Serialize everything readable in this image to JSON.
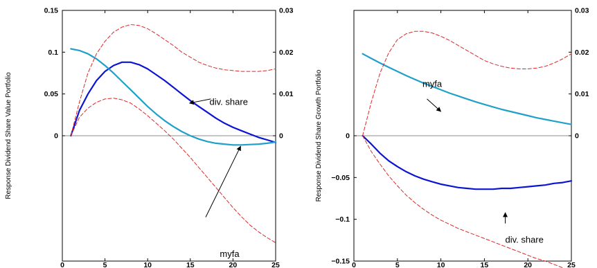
{
  "chart_data": [
    {
      "type": "line",
      "title": "",
      "xlabel": "",
      "ylabel": "Response Dividend Share Value Portfolio",
      "xlim": [
        0,
        25
      ],
      "ylim_left": [
        -0.15,
        0.15
      ],
      "ylim_right": [
        -0.03,
        0.03
      ],
      "xticks": [
        "0",
        "5",
        "10",
        "15",
        "20",
        "25"
      ],
      "yticks_left": [
        {
          "v": 0.15,
          "label": "0.15"
        },
        {
          "v": 0.1,
          "label": "0.1"
        },
        {
          "v": 0.05,
          "label": "0.05"
        },
        {
          "v": 0,
          "label": "0"
        }
      ],
      "yticks_right": [
        {
          "v": 0.03,
          "label": "0.03"
        },
        {
          "v": 0.02,
          "label": "0.02"
        },
        {
          "v": 0.01,
          "label": "0.01"
        },
        {
          "v": 0,
          "label": "0"
        }
      ],
      "series": [
        {
          "name": "div. share",
          "axis": "left",
          "color": "#0a14d2",
          "style": "solid",
          "width": 2.2,
          "x": [
            1,
            2,
            3,
            4,
            5,
            6,
            7,
            8,
            9,
            10,
            11,
            12,
            13,
            14,
            15,
            16,
            17,
            18,
            19,
            20,
            21,
            22,
            23,
            24,
            25
          ],
          "y": [
            0.0,
            0.03,
            0.05,
            0.066,
            0.077,
            0.084,
            0.088,
            0.088,
            0.085,
            0.08,
            0.073,
            0.066,
            0.058,
            0.05,
            0.042,
            0.035,
            0.028,
            0.021,
            0.015,
            0.01,
            0.006,
            0.002,
            -0.002,
            -0.005,
            -0.008
          ]
        },
        {
          "name": "myfa",
          "axis": "right",
          "color": "#1fa0c8",
          "style": "solid",
          "width": 2.2,
          "x": [
            1,
            2,
            3,
            4,
            5,
            6,
            7,
            8,
            9,
            10,
            11,
            12,
            13,
            14,
            15,
            16,
            17,
            18,
            19,
            20,
            21,
            22,
            23,
            24,
            25
          ],
          "y": [
            0.0208,
            0.0204,
            0.0196,
            0.0184,
            0.0168,
            0.015,
            0.013,
            0.011,
            0.009,
            0.007,
            0.0052,
            0.0036,
            0.0022,
            0.001,
            0.0,
            -0.0008,
            -0.0014,
            -0.0018,
            -0.002,
            -0.0022,
            -0.0022,
            -0.0021,
            -0.002,
            -0.0018,
            -0.0015
          ]
        },
        {
          "name": "",
          "axis": "left",
          "color": "#dc2828",
          "style": "dashed",
          "width": 1,
          "x": [
            1,
            2,
            3,
            4,
            5,
            6,
            7,
            8,
            9,
            10,
            11,
            12,
            13,
            14,
            15,
            16,
            17,
            18,
            19,
            20,
            21,
            22,
            23,
            24,
            25
          ],
          "y": [
            0.0,
            0.04,
            0.075,
            0.098,
            0.113,
            0.124,
            0.13,
            0.133,
            0.132,
            0.128,
            0.122,
            0.115,
            0.108,
            0.1,
            0.094,
            0.088,
            0.084,
            0.081,
            0.079,
            0.078,
            0.077,
            0.077,
            0.077,
            0.078,
            0.08
          ]
        },
        {
          "name": "",
          "axis": "left",
          "color": "#dc2828",
          "style": "dashed",
          "width": 1,
          "x": [
            1,
            2,
            3,
            4,
            5,
            6,
            7,
            8,
            9,
            10,
            11,
            12,
            13,
            14,
            15,
            16,
            17,
            18,
            19,
            20,
            21,
            22,
            23,
            24,
            25
          ],
          "y": [
            0.0,
            0.022,
            0.033,
            0.04,
            0.044,
            0.045,
            0.043,
            0.039,
            0.032,
            0.024,
            0.015,
            0.006,
            -0.004,
            -0.015,
            -0.026,
            -0.038,
            -0.05,
            -0.062,
            -0.074,
            -0.086,
            -0.097,
            -0.107,
            -0.115,
            -0.122,
            -0.128
          ]
        }
      ],
      "annotations": [
        {
          "text": "div. share",
          "x": 19.5,
          "y": 0.037,
          "axis": "left",
          "anchor": "middle",
          "arrow_from": [
            17.4,
            0.044
          ],
          "arrow_to": [
            14.9,
            0.039
          ]
        },
        {
          "text": "myfa",
          "x": 19.6,
          "y": -0.029,
          "axis": "right",
          "anchor": "middle",
          "arrow_from": [
            16.8,
            -0.0195
          ],
          "arrow_to": [
            20.9,
            -0.0025
          ]
        }
      ]
    },
    {
      "type": "line",
      "title": "",
      "xlabel": "",
      "ylabel": "Response Dividend Share Growth Portfolio",
      "xlim": [
        0,
        25
      ],
      "ylim_left": [
        -0.15,
        0.15
      ],
      "ylim_right": [
        -0.03,
        0.03
      ],
      "xticks": [
        "0",
        "5",
        "10",
        "15",
        "20",
        "25"
      ],
      "yticks_left": [
        {
          "v": 0,
          "label": "0"
        },
        {
          "v": -0.05,
          "label": "−0.05"
        },
        {
          "v": -0.1,
          "label": "−0.1"
        },
        {
          "v": -0.15,
          "label": "−0.15"
        }
      ],
      "yticks_right": [
        {
          "v": 0.03,
          "label": "0.03"
        },
        {
          "v": 0.02,
          "label": "0.02"
        },
        {
          "v": 0.01,
          "label": "0.01"
        },
        {
          "v": 0,
          "label": "0"
        }
      ],
      "series": [
        {
          "name": "myfa",
          "axis": "right",
          "color": "#1fa0c8",
          "style": "solid",
          "width": 2.2,
          "x": [
            1,
            2,
            3,
            4,
            5,
            6,
            7,
            8,
            9,
            10,
            11,
            12,
            13,
            14,
            15,
            16,
            17,
            18,
            19,
            20,
            21,
            22,
            23,
            24,
            25
          ],
          "y": [
            0.0196,
            0.0185,
            0.0174,
            0.0164,
            0.0154,
            0.0144,
            0.0135,
            0.0126,
            0.0118,
            0.011,
            0.0102,
            0.0095,
            0.0088,
            0.0081,
            0.0075,
            0.0069,
            0.0063,
            0.0058,
            0.0053,
            0.0048,
            0.0043,
            0.0039,
            0.0035,
            0.0031,
            0.0027
          ]
        },
        {
          "name": "div. share",
          "axis": "left",
          "color": "#0a14d2",
          "style": "solid",
          "width": 2.2,
          "x": [
            1,
            2,
            3,
            4,
            5,
            6,
            7,
            8,
            9,
            10,
            11,
            12,
            13,
            14,
            15,
            16,
            17,
            18,
            19,
            20,
            21,
            22,
            23,
            24,
            25
          ],
          "y": [
            0.0,
            -0.01,
            -0.021,
            -0.03,
            -0.037,
            -0.043,
            -0.048,
            -0.052,
            -0.055,
            -0.058,
            -0.06,
            -0.062,
            -0.063,
            -0.064,
            -0.064,
            -0.064,
            -0.063,
            -0.063,
            -0.062,
            -0.061,
            -0.06,
            -0.059,
            -0.057,
            -0.056,
            -0.054
          ]
        },
        {
          "name": "",
          "axis": "left",
          "color": "#dc2828",
          "style": "dashed",
          "width": 1,
          "x": [
            1,
            2,
            3,
            4,
            5,
            6,
            7,
            8,
            9,
            10,
            11,
            12,
            13,
            14,
            15,
            16,
            17,
            18,
            19,
            20,
            21,
            22,
            23,
            24,
            25
          ],
          "y": [
            0.0,
            0.04,
            0.075,
            0.099,
            0.115,
            0.122,
            0.125,
            0.125,
            0.123,
            0.119,
            0.114,
            0.108,
            0.102,
            0.096,
            0.09,
            0.086,
            0.083,
            0.081,
            0.08,
            0.08,
            0.081,
            0.083,
            0.087,
            0.092,
            0.098
          ]
        },
        {
          "name": "",
          "axis": "left",
          "color": "#dc2828",
          "style": "dashed",
          "width": 1,
          "x": [
            1,
            2,
            3,
            4,
            5,
            6,
            7,
            8,
            9,
            10,
            11,
            12,
            13,
            14,
            15,
            16,
            17,
            18,
            19,
            20,
            21,
            22,
            23,
            24,
            25
          ],
          "y": [
            0.0,
            -0.019,
            -0.034,
            -0.048,
            -0.06,
            -0.071,
            -0.08,
            -0.088,
            -0.095,
            -0.101,
            -0.106,
            -0.111,
            -0.115,
            -0.119,
            -0.123,
            -0.127,
            -0.131,
            -0.135,
            -0.139,
            -0.143,
            -0.147,
            -0.15,
            -0.154,
            -0.158,
            -0.163
          ]
        }
      ],
      "annotations": [
        {
          "text": "myfa",
          "x": 9.0,
          "y": 0.0117,
          "axis": "right",
          "anchor": "middle",
          "arrow_from": [
            8.4,
            0.0088
          ],
          "arrow_to": [
            10.0,
            0.0058
          ]
        },
        {
          "text": "div. share",
          "x": 19.6,
          "y": -0.128,
          "axis": "left",
          "anchor": "middle",
          "arrow_from": [
            17.4,
            -0.105
          ],
          "arrow_to": [
            17.4,
            -0.092
          ]
        }
      ]
    }
  ]
}
